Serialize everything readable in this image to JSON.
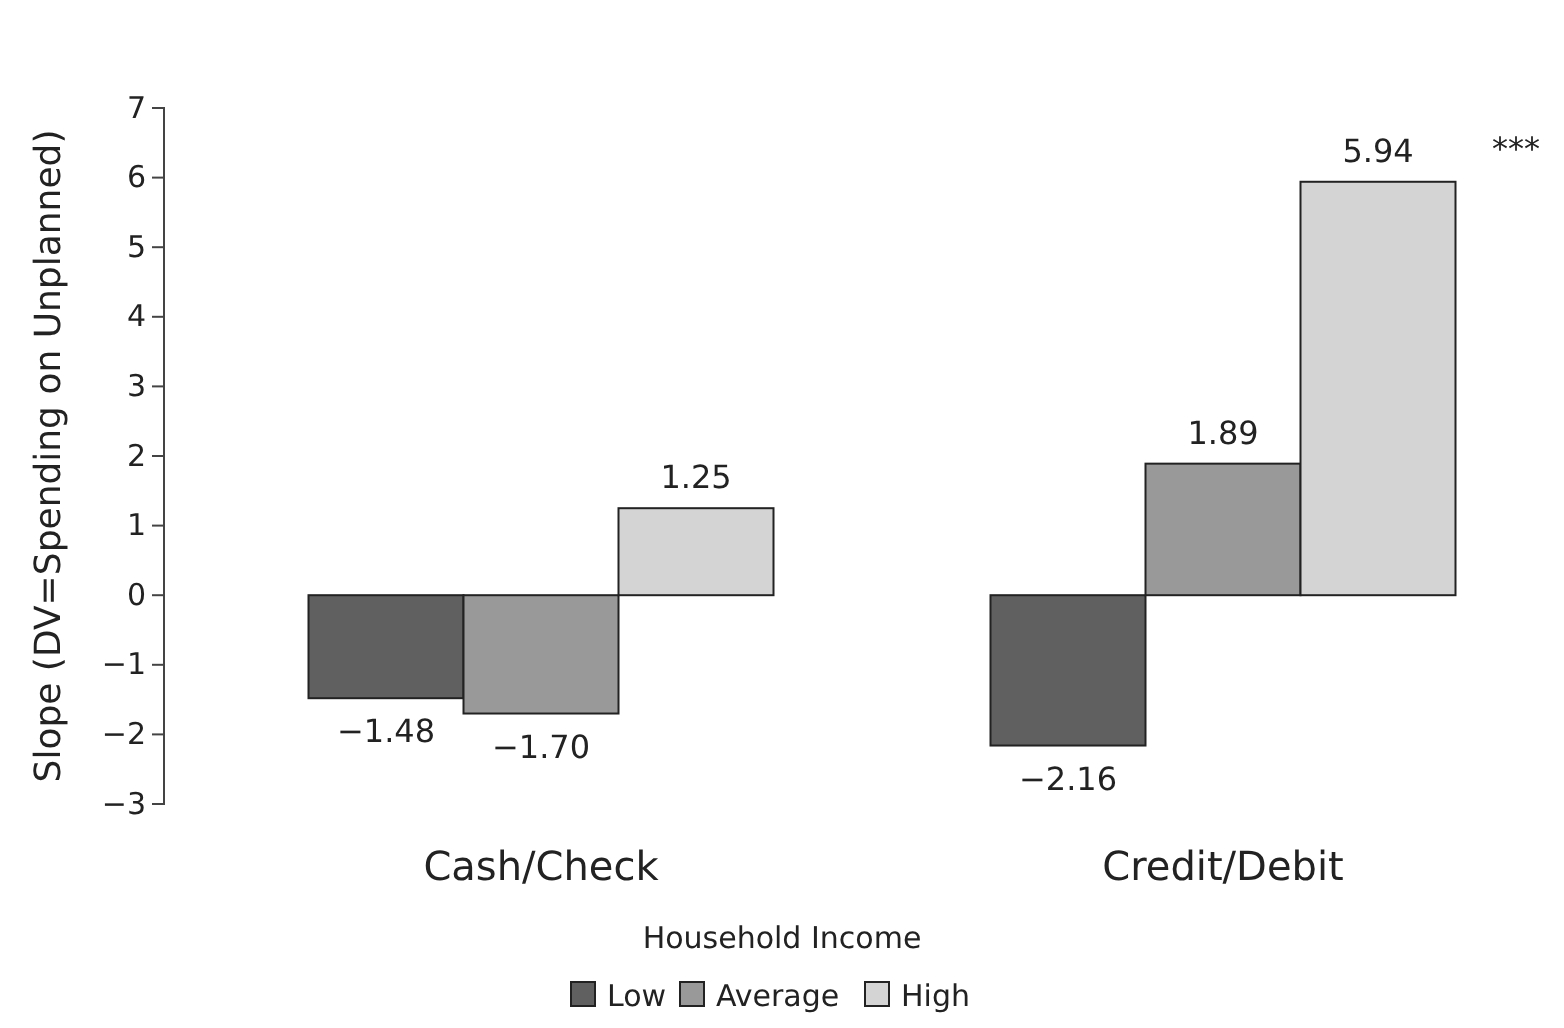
{
  "chart_data": {
    "type": "bar",
    "ylabel": "Slope (DV=Spending on Unplanned)",
    "legend_title": "Household Income",
    "categories": [
      "Cash/Check",
      "Credit/Debit"
    ],
    "series": [
      {
        "name": "Low",
        "color": "#606060",
        "values": [
          -1.48,
          -2.16
        ],
        "value_labels": [
          "−1.48",
          "−2.16"
        ]
      },
      {
        "name": "Average",
        "color": "#999999",
        "values": [
          -1.7,
          1.89
        ],
        "value_labels": [
          "−1.70",
          "1.89"
        ]
      },
      {
        "name": "High",
        "color": "#d4d4d4",
        "values": [
          1.25,
          5.94
        ],
        "value_labels": [
          "1.25",
          "5.94"
        ]
      }
    ],
    "ylim": [
      -3,
      7
    ],
    "yticks": [
      -3,
      -2,
      -1,
      0,
      1,
      2,
      3,
      4,
      5,
      6,
      7
    ],
    "legend": "bottom",
    "grid": false,
    "annotations": [
      "***"
    ]
  }
}
